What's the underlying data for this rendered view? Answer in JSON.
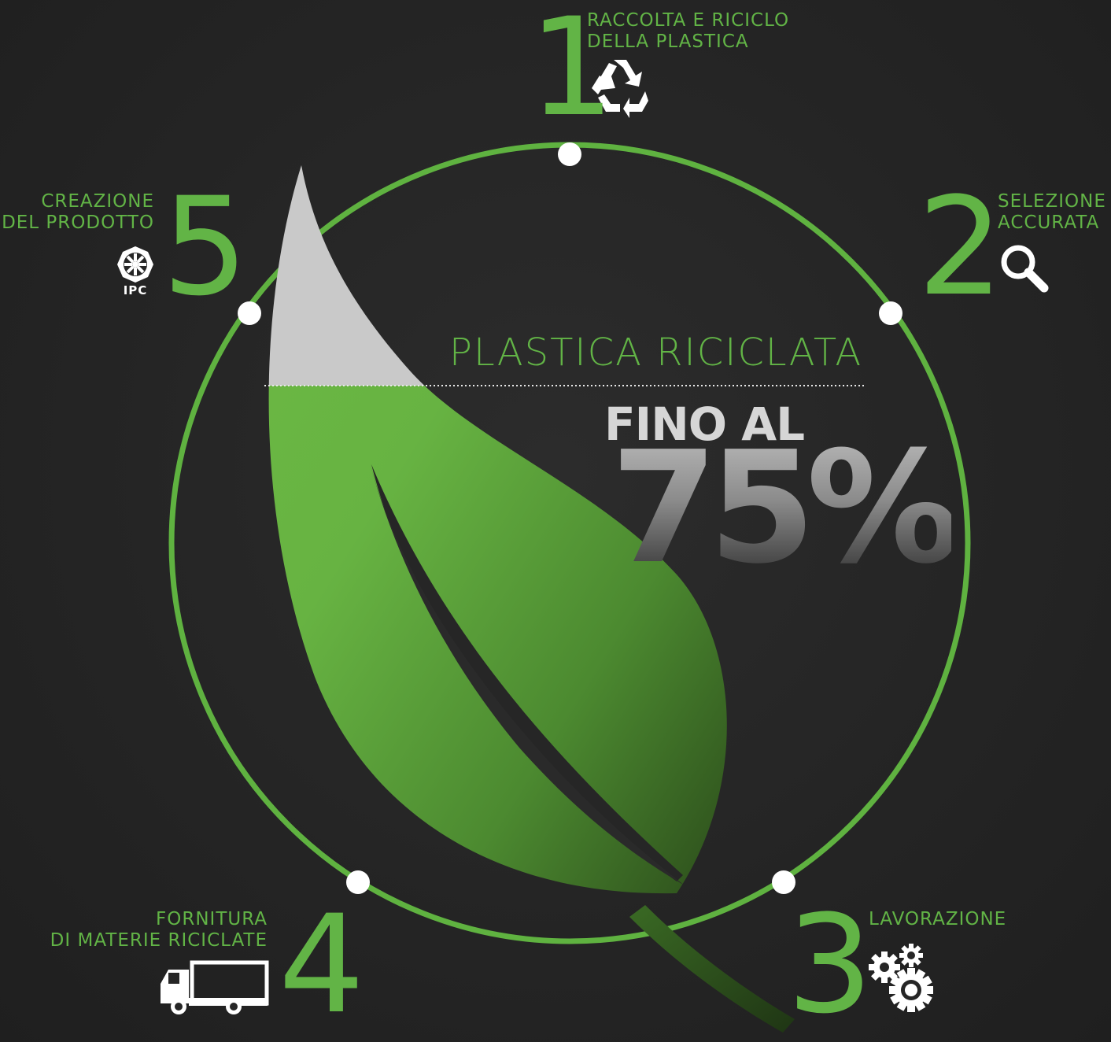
{
  "headline": "PLASTICA RICICLATA",
  "upto": "FINO AL",
  "percentage": "75%",
  "percentage_value": 75,
  "colors": {
    "accent": "#62b446",
    "background": "#262626",
    "leaf_light": "#6cb944",
    "leaf_dark": "#2e4f1c",
    "leaf_top": "#c9c9c9",
    "text_gray": "#d6d6d6"
  },
  "steps": [
    {
      "number": "1",
      "lines": [
        "RACCOLTA E RICICLO",
        "DELLA PLASTICA"
      ],
      "icon": "recycle-icon"
    },
    {
      "number": "2",
      "lines": [
        "SELEZIONE",
        "ACCURATA"
      ],
      "icon": "magnifier-icon"
    },
    {
      "number": "3",
      "lines": [
        "LAVORAZIONE"
      ],
      "icon": "gears-icon"
    },
    {
      "number": "4",
      "lines": [
        "FORNITURA",
        "DI MATERIE RICICLATE"
      ],
      "icon": "truck-icon"
    },
    {
      "number": "5",
      "lines": [
        "CREAZIONE",
        "DEL PRODOTTO"
      ],
      "icon": "ipc-logo-icon"
    }
  ],
  "logo_text": "IPC"
}
